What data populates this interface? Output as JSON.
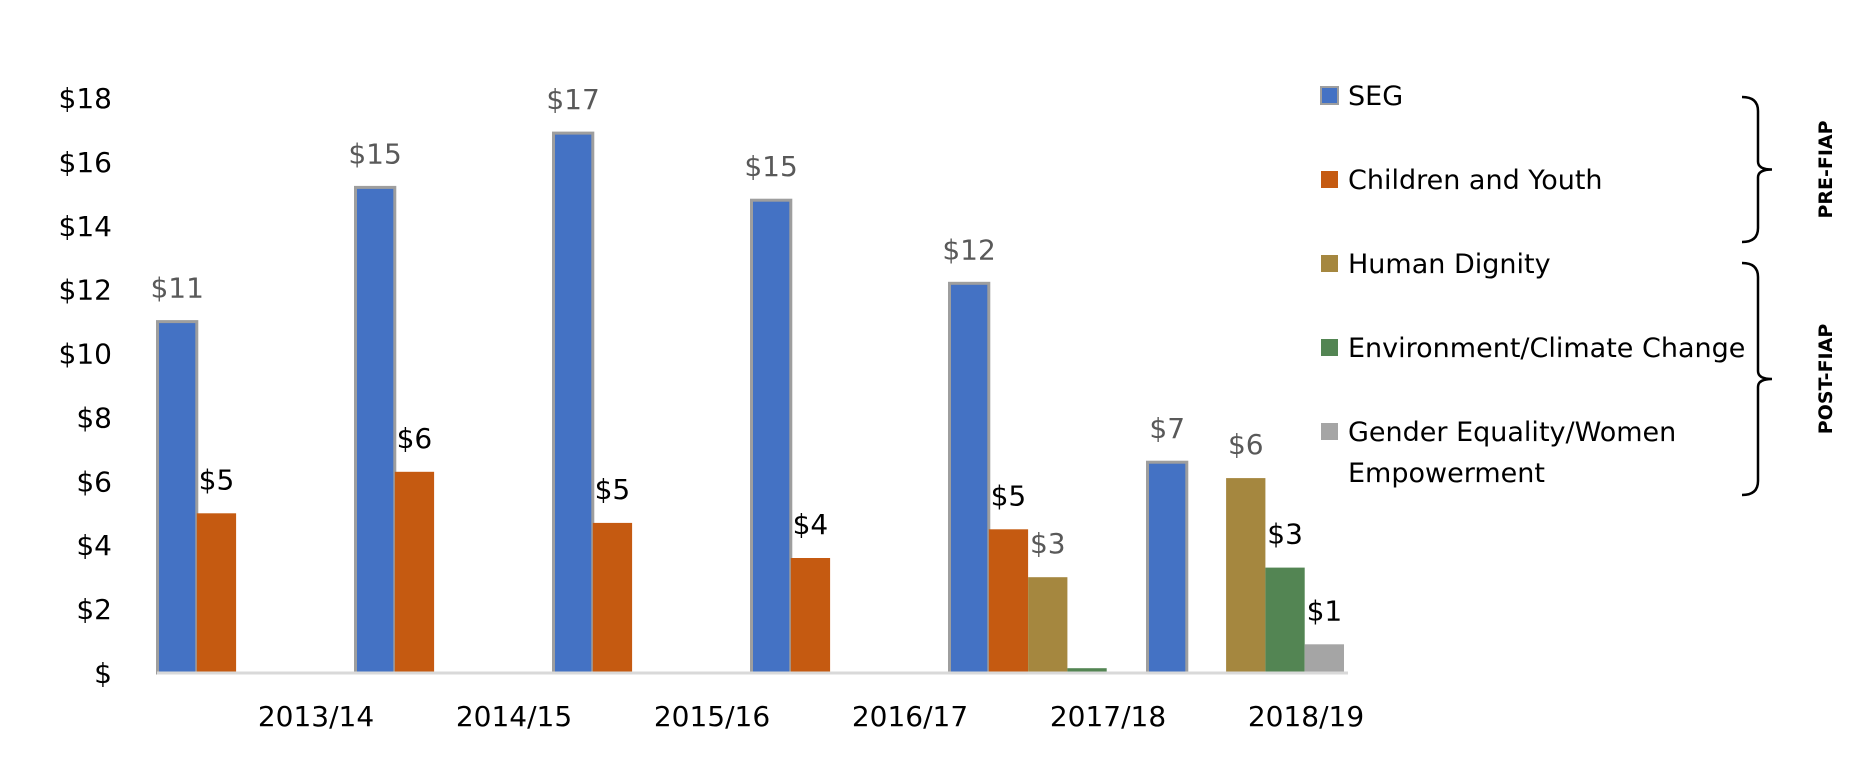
{
  "chart_data": {
    "type": "bar",
    "categories": [
      "2013/14",
      "2014/15",
      "2015/16",
      "2016/17",
      "2017/18",
      "2018/19"
    ],
    "series": [
      {
        "name": "SEG",
        "values": [
          11,
          15.2,
          16.9,
          14.8,
          12.2,
          6.6
        ],
        "labels": [
          "$11",
          "$15",
          "$17",
          "$15",
          "$12",
          "$7"
        ],
        "color": "#4472C4"
      },
      {
        "name": "Children and Youth",
        "values": [
          5,
          6.3,
          4.7,
          3.6,
          4.5,
          null
        ],
        "labels": [
          "$5",
          "$6",
          "$5",
          "$4",
          "$5",
          ""
        ],
        "color": "#C55A11"
      },
      {
        "name": "Human Dignity",
        "values": [
          null,
          null,
          null,
          null,
          3,
          6.1
        ],
        "labels": [
          "",
          "",
          "",
          "",
          "$3",
          "$6"
        ],
        "color": "#A5873F"
      },
      {
        "name": "Environment/Climate Change",
        "values": [
          null,
          null,
          null,
          null,
          0.15,
          3.3
        ],
        "labels": [
          "",
          "",
          "",
          "",
          "",
          "$3"
        ],
        "color": "#538553"
      },
      {
        "name": "Gender Equality/Women Empowerment",
        "values": [
          null,
          null,
          null,
          null,
          null,
          0.9
        ],
        "labels": [
          "",
          "",
          "",
          "",
          "",
          "$1"
        ],
        "color": "#A5A5A5"
      }
    ],
    "legend_lines": [
      [
        "SEG"
      ],
      [
        "Children and Youth"
      ],
      [
        "Human Dignity"
      ],
      [
        "Environment/Climate Change"
      ],
      [
        "Gender Equality/Women",
        "Empowerment"
      ]
    ],
    "yticks": [
      0,
      2,
      4,
      6,
      8,
      10,
      12,
      14,
      16,
      18
    ],
    "ytick_labels": [
      "$",
      "$2",
      "$4",
      "$6",
      "$8",
      "$10",
      "$12",
      "$14",
      "$16",
      "$18"
    ],
    "ylim": [
      0,
      18
    ],
    "brackets": [
      {
        "label": "PRE-FIAP",
        "covers": [
          "SEG",
          "Children and Youth"
        ]
      },
      {
        "label": "POST-FIAP",
        "covers": [
          "Human Dignity",
          "Environment/Climate Change",
          "Gender Equality/Women Empowerment"
        ]
      }
    ],
    "legend_position": "right",
    "grid": false,
    "title": "",
    "xlabel": "",
    "ylabel": ""
  }
}
